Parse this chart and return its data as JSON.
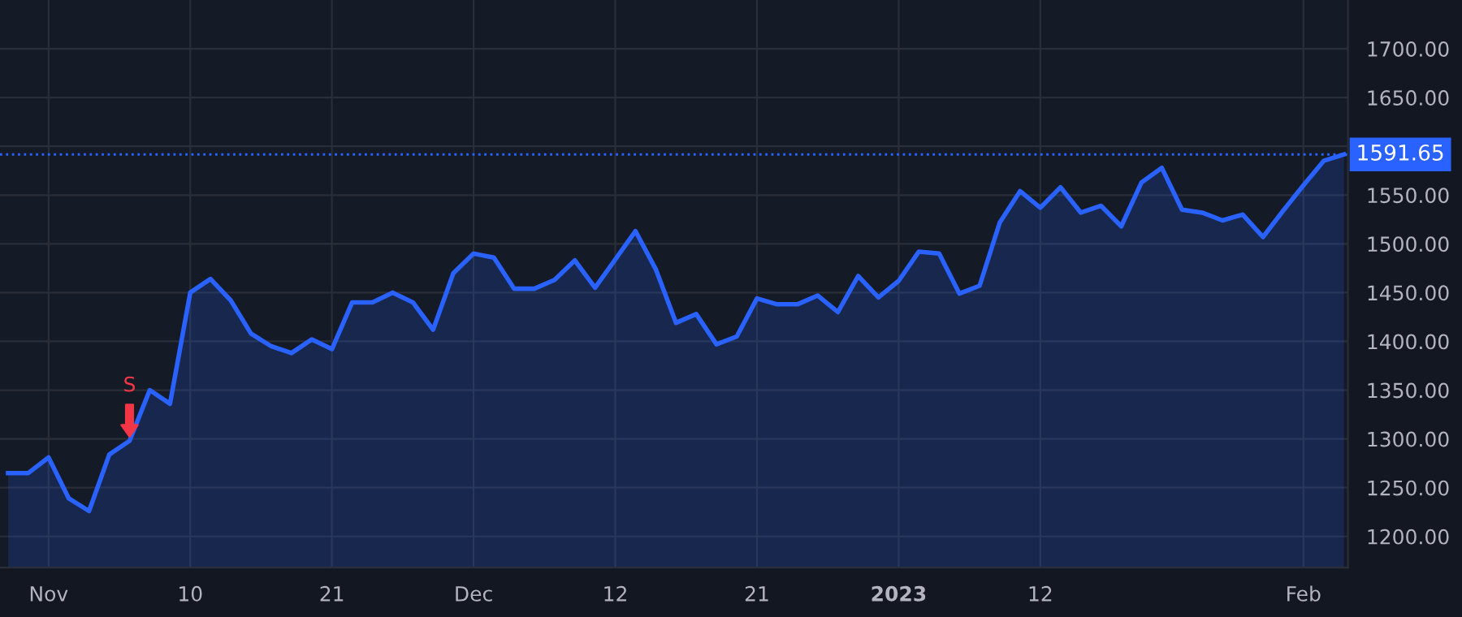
{
  "chart_data": {
    "type": "area",
    "categories": [
      null,
      null,
      "Nov",
      null,
      null,
      null,
      null,
      null,
      null,
      "10",
      null,
      null,
      null,
      null,
      null,
      null,
      "21",
      null,
      null,
      null,
      null,
      null,
      null,
      "Dec",
      null,
      null,
      null,
      null,
      null,
      null,
      "12",
      null,
      null,
      null,
      null,
      null,
      null,
      "21",
      null,
      null,
      null,
      null,
      null,
      null,
      "2023",
      null,
      null,
      null,
      null,
      null,
      null,
      "12",
      null,
      null,
      null,
      null,
      null,
      null,
      null,
      null,
      null,
      null,
      null,
      null,
      "Feb",
      null,
      null
    ],
    "series": [
      {
        "color": "#2962ff",
        "values": [
          1265,
          1265,
          1281,
          1239,
          1226,
          1284,
          1298,
          1350,
          1336,
          1450,
          1464,
          1442,
          1408,
          1395,
          1388,
          1402,
          1392,
          1440,
          1440,
          1450,
          1440,
          1412,
          1470,
          1490,
          1486,
          1454,
          1454,
          1463,
          1483,
          1455,
          1484,
          1513,
          1474,
          1419,
          1428,
          1397,
          1405,
          1444,
          1438,
          1438,
          1447,
          1430,
          1467,
          1445,
          1462,
          1492,
          1490,
          1449,
          1457,
          1522,
          1554,
          1537,
          1558,
          1532,
          1539,
          1518,
          1563,
          1578,
          1535,
          1532,
          1524,
          1530,
          1507,
          1534,
          1560,
          1585,
          1591.65
        ]
      }
    ],
    "ylim": [
      1168,
      1750
    ],
    "yticks": [
      {
        "value": 1200,
        "label": "1200.00"
      },
      {
        "value": 1250,
        "label": "1250.00"
      },
      {
        "value": 1300,
        "label": "1300.00"
      },
      {
        "value": 1350,
        "label": "1350.00"
      },
      {
        "value": 1400,
        "label": "1400.00"
      },
      {
        "value": 1450,
        "label": "1450.00"
      },
      {
        "value": 1500,
        "label": "1500.00"
      },
      {
        "value": 1550,
        "label": "1550.00"
      },
      {
        "value": 1600,
        "label": null
      },
      {
        "value": 1650,
        "label": "1650.00"
      },
      {
        "value": 1700,
        "label": "1700.00"
      }
    ],
    "ref_lines": [
      {
        "axis": "y",
        "value": 1591.65,
        "label": "1591.65",
        "color": "#2962ff",
        "line_style": "dotted"
      }
    ],
    "annotations": [
      {
        "text": "S",
        "y": 1298
      }
    ],
    "grid": true,
    "marker": "none",
    "line_style": "solid"
  }
}
